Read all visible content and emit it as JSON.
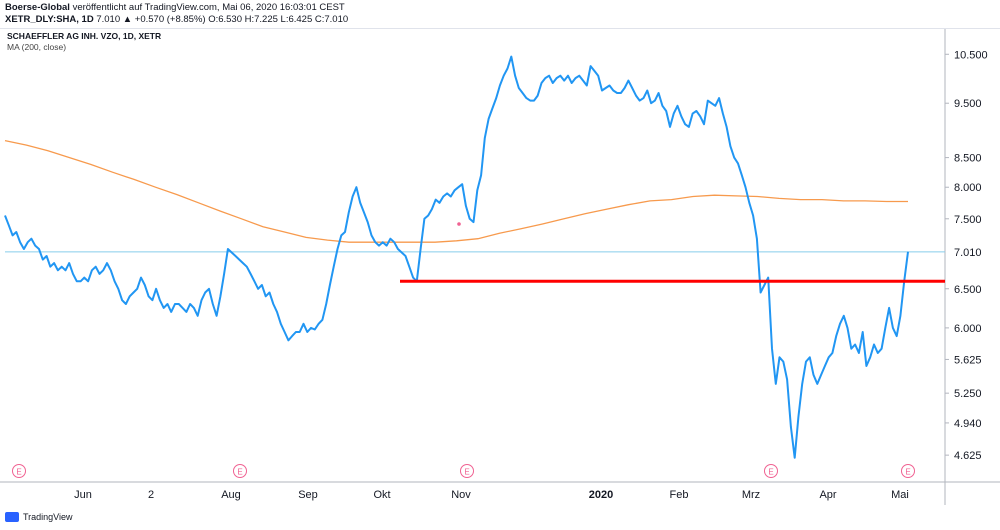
{
  "header": {
    "line1_user": "Boerse-Global",
    "line1_rest": " veröffentlicht auf TradingView.com, Mai 06, 2020 16:03:01 CEST",
    "line2_symbol": "XETR_DLY:SHA, 1D",
    "line2_rest": " 7.010 ▲ +0.570 (+8.85%) O:6.530 H:7.225 L:6.425 C:7.010"
  },
  "legend": {
    "title": "SCHAEFFLER AG INH. VZO, 1D, XETR",
    "indicator": "MA (200, close)"
  },
  "footer": {
    "brand": "TradingView"
  },
  "colors": {
    "price": "#2196f3",
    "ma": "#f79a4d",
    "support": "#ff0000",
    "current": "#87ceeb",
    "earnings": "#f06292"
  },
  "chart_data": {
    "type": "line",
    "scale": "log",
    "y_ticks": [
      "10.500",
      "9.500",
      "8.500",
      "8.000",
      "7.500",
      "7.010",
      "6.500",
      "6.000",
      "5.625",
      "5.250",
      "4.940",
      "4.625"
    ],
    "x_ticks": [
      "Jun",
      "2",
      "Aug",
      "Sep",
      "Okt",
      "Nov",
      "2020",
      "Feb",
      "Mrz",
      "Apr",
      "Mai"
    ],
    "earnings_marker": "E",
    "last_price": "7.010",
    "support_level": 6.6,
    "series": [
      {
        "name": "SCHAEFFLER AG INH. VZO",
        "values": [
          7.55,
          7.4,
          7.25,
          7.3,
          7.15,
          7.05,
          7.15,
          7.2,
          7.1,
          7.05,
          6.9,
          6.95,
          6.8,
          6.85,
          6.75,
          6.8,
          6.75,
          6.85,
          6.7,
          6.6,
          6.6,
          6.65,
          6.6,
          6.75,
          6.8,
          6.7,
          6.75,
          6.85,
          6.75,
          6.6,
          6.5,
          6.35,
          6.3,
          6.4,
          6.45,
          6.5,
          6.65,
          6.55,
          6.4,
          6.35,
          6.5,
          6.35,
          6.25,
          6.3,
          6.2,
          6.3,
          6.3,
          6.25,
          6.2,
          6.3,
          6.25,
          6.15,
          6.35,
          6.45,
          6.5,
          6.3,
          6.15,
          6.4,
          6.7,
          7.05,
          7.0,
          6.95,
          6.9,
          6.85,
          6.8,
          6.7,
          6.6,
          6.5,
          6.55,
          6.4,
          6.45,
          6.3,
          6.2,
          6.05,
          5.95,
          5.85,
          5.9,
          5.95,
          5.95,
          6.05,
          5.95,
          6.0,
          5.98,
          6.05,
          6.1,
          6.3,
          6.55,
          6.8,
          7.05,
          7.25,
          7.3,
          7.6,
          7.85,
          8.0,
          7.75,
          7.6,
          7.45,
          7.25,
          7.15,
          7.1,
          7.15,
          7.1,
          7.2,
          7.15,
          7.05,
          7.0,
          6.95,
          6.8,
          6.65,
          6.6,
          7.05,
          7.5,
          7.55,
          7.65,
          7.8,
          7.75,
          7.85,
          7.9,
          7.85,
          7.95,
          8.0,
          8.05,
          7.7,
          7.5,
          7.45,
          7.95,
          8.2,
          8.85,
          9.2,
          9.4,
          9.6,
          9.85,
          10.05,
          10.2,
          10.45,
          10.05,
          9.8,
          9.7,
          9.6,
          9.55,
          9.55,
          9.65,
          9.9,
          10.0,
          10.05,
          9.9,
          10.0,
          10.05,
          9.95,
          10.05,
          9.9,
          10.0,
          10.05,
          9.95,
          9.85,
          10.25,
          10.15,
          10.05,
          9.75,
          9.8,
          9.85,
          9.75,
          9.7,
          9.7,
          9.8,
          9.95,
          9.8,
          9.65,
          9.55,
          9.6,
          9.75,
          9.5,
          9.55,
          9.7,
          9.45,
          9.35,
          9.05,
          9.3,
          9.45,
          9.25,
          9.1,
          9.05,
          9.3,
          9.35,
          9.25,
          9.1,
          9.55,
          9.5,
          9.45,
          9.6,
          9.3,
          9.05,
          8.7,
          8.5,
          8.4,
          8.2,
          8.0,
          7.75,
          7.55,
          7.2,
          6.45,
          6.55,
          6.65,
          5.75,
          5.35,
          5.65,
          5.6,
          5.4,
          4.9,
          4.6,
          5.0,
          5.35,
          5.6,
          5.65,
          5.45,
          5.35,
          5.45,
          5.55,
          5.65,
          5.7,
          5.9,
          6.05,
          6.15,
          6.0,
          5.75,
          5.8,
          5.7,
          5.95,
          5.55,
          5.65,
          5.8,
          5.7,
          5.75,
          6.0,
          6.25,
          6.0,
          5.9,
          6.15,
          6.6,
          7.01
        ]
      },
      {
        "name": "MA (200, close)",
        "values": [
          8.8,
          8.72,
          8.62,
          8.5,
          8.38,
          8.25,
          8.13,
          8.0,
          7.88,
          7.75,
          7.62,
          7.5,
          7.38,
          7.3,
          7.22,
          7.18,
          7.15,
          7.15,
          7.15,
          7.15,
          7.15,
          7.17,
          7.2,
          7.28,
          7.35,
          7.42,
          7.5,
          7.58,
          7.65,
          7.72,
          7.78,
          7.8,
          7.85,
          7.87,
          7.86,
          7.85,
          7.82,
          7.8,
          7.8,
          7.78,
          7.78,
          7.77,
          7.77
        ]
      }
    ]
  }
}
